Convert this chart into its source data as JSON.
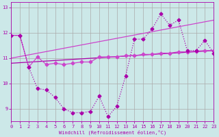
{
  "xlabel": "Windchill (Refroidissement éolien,°C)",
  "bg_color": "#cce8e8",
  "grid_color": "#aaaaaa",
  "color1": "#aa00aa",
  "color2": "#cc44cc",
  "xlim": [
    0,
    23
  ],
  "ylim": [
    8.5,
    13.2
  ],
  "yticks": [
    9,
    10,
    11,
    12,
    13
  ],
  "xticks": [
    0,
    1,
    2,
    3,
    4,
    5,
    6,
    7,
    8,
    9,
    10,
    11,
    12,
    13,
    14,
    15,
    16,
    17,
    18,
    19,
    20,
    21,
    22,
    23
  ],
  "line1_x": [
    0,
    1,
    2,
    3,
    4,
    5,
    6,
    7,
    8,
    9,
    10,
    11,
    12,
    13,
    14,
    15,
    16,
    17,
    18,
    19,
    20,
    21,
    22,
    23
  ],
  "line1_y": [
    11.9,
    11.9,
    10.65,
    9.8,
    9.75,
    9.45,
    9.0,
    8.85,
    8.85,
    8.9,
    9.5,
    8.7,
    9.1,
    10.3,
    11.75,
    11.75,
    12.15,
    12.75,
    12.3,
    12.5,
    11.3,
    11.3,
    11.7,
    11.2
  ],
  "line2_x": [
    0,
    1,
    2,
    3,
    4,
    5,
    6,
    7,
    8,
    9,
    10,
    11,
    12,
    13,
    14,
    15,
    16,
    17,
    18,
    19,
    20,
    21,
    22,
    23
  ],
  "line2_y": [
    11.9,
    11.9,
    10.65,
    11.05,
    10.75,
    10.8,
    10.75,
    10.8,
    10.85,
    10.85,
    11.05,
    11.05,
    11.05,
    11.1,
    11.1,
    11.15,
    11.15,
    11.2,
    11.2,
    11.25,
    11.25,
    11.28,
    11.3,
    11.3
  ],
  "line3_x": [
    0,
    23
  ],
  "line3_y": [
    10.8,
    11.3
  ],
  "line4_x": [
    0,
    23
  ],
  "line4_y": [
    11.0,
    12.5
  ],
  "markersize": 2.5,
  "linewidth": 0.9
}
